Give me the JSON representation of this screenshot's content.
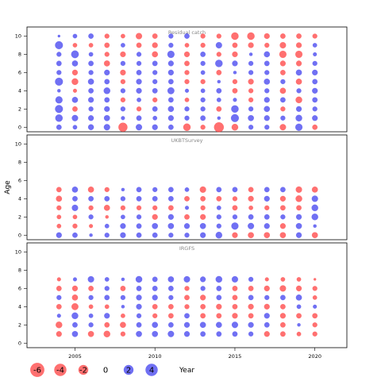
{
  "chart_data": {
    "type": "scatter",
    "subtype": "bubble-residuals",
    "xlabel": "Year",
    "ylabel": "Age",
    "xlim": [
      2002,
      2022
    ],
    "ylim": [
      -0.5,
      11
    ],
    "x_ticks": [
      2005,
      2010,
      2015,
      2020
    ],
    "y_ticks": [
      0,
      2,
      4,
      6,
      8,
      10
    ],
    "positive_color": "#3333ee",
    "negative_color": "#ff3333",
    "legend": {
      "values": [
        -6,
        -4,
        -2,
        0,
        2,
        4
      ],
      "labels": [
        "-6",
        "-4",
        "-2",
        "0",
        "2",
        "4"
      ]
    },
    "panels": [
      {
        "title": "Residual catch",
        "years": [
          2004,
          2005,
          2006,
          2007,
          2008,
          2009,
          2010,
          2011,
          2012,
          2013,
          2014,
          2015,
          2016,
          2017,
          2018,
          2019,
          2020
        ],
        "ages": [
          0,
          1,
          2,
          3,
          4,
          5,
          6,
          7,
          8,
          9,
          10
        ],
        "residuals": [
          [
            1.2,
            0.8,
            1.5,
            1.8,
            -4.0,
            1.8,
            1.4,
            1.2,
            -2.6,
            -1.0,
            -4.8,
            -2.0,
            1.0,
            1.0,
            -1.8,
            2.4,
            -1.2
          ],
          [
            2.6,
            1.8,
            1.4,
            1.6,
            0.6,
            1.2,
            0.8,
            1.4,
            1.0,
            1.2,
            0.4,
            3.0,
            1.6,
            1.4,
            1.0,
            2.0,
            1.4
          ],
          [
            3.0,
            -1.2,
            1.0,
            1.4,
            1.0,
            -1.0,
            1.2,
            1.6,
            1.0,
            1.0,
            -1.2,
            2.6,
            1.0,
            1.6,
            -1.0,
            1.4,
            1.0
          ],
          [
            2.4,
            1.6,
            1.4,
            1.2,
            -1.0,
            0.8,
            -1.0,
            1.2,
            -0.8,
            1.0,
            0.8,
            0.6,
            -1.0,
            1.4,
            1.2,
            -2.0,
            1.2
          ],
          [
            0.4,
            -0.6,
            1.2,
            2.0,
            1.0,
            1.4,
            1.2,
            2.2,
            0.6,
            0.8,
            1.2,
            -1.2,
            -1.0,
            1.0,
            -1.6,
            1.0,
            1.4
          ],
          [
            3.0,
            -2.0,
            1.6,
            1.2,
            -1.0,
            1.4,
            1.0,
            1.2,
            -1.0,
            -1.0,
            0.4,
            -1.0,
            -1.4,
            1.6,
            1.0,
            -1.6,
            1.2
          ],
          [
            1.0,
            -1.4,
            1.0,
            1.4,
            -1.4,
            1.2,
            1.0,
            1.4,
            -1.0,
            0.8,
            -1.2,
            0.4,
            1.0,
            1.0,
            -1.2,
            1.6,
            1.4
          ],
          [
            1.2,
            1.6,
            1.2,
            -1.6,
            1.0,
            1.0,
            1.2,
            1.4,
            -1.2,
            1.0,
            2.6,
            1.4,
            1.0,
            1.2,
            -1.4,
            -1.4,
            1.0
          ],
          [
            1.0,
            2.8,
            0.8,
            -1.0,
            -1.4,
            1.0,
            -1.6,
            2.4,
            -1.4,
            1.2,
            -1.0,
            -1.4,
            0.4,
            1.6,
            -2.4,
            -2.4,
            0.6
          ],
          [
            3.0,
            -0.8,
            -0.8,
            -1.2,
            0.8,
            -1.2,
            -1.4,
            1.0,
            -0.8,
            -1.0,
            1.8,
            -1.2,
            -1.4,
            -1.0,
            -1.8,
            -1.4,
            0.8
          ],
          [
            0.2,
            0.8,
            1.2,
            -1.0,
            -0.8,
            -1.8,
            -1.2,
            1.0,
            1.2,
            -1.0,
            -1.0,
            -2.6,
            -2.6,
            -1.4,
            -1.2,
            -1.2,
            -1.0
          ]
        ]
      },
      {
        "title": "UKBTSurvey",
        "years": [
          2004,
          2005,
          2006,
          2007,
          2008,
          2009,
          2010,
          2011,
          2012,
          2013,
          2014,
          2015,
          2016,
          2017,
          2018,
          2019,
          2020
        ],
        "ages": [
          0,
          1,
          2,
          3,
          4,
          5
        ],
        "residuals": [
          [
            1.4,
            1.2,
            0.4,
            1.0,
            1.4,
            1.2,
            1.2,
            1.0,
            1.0,
            1.4,
            2.0,
            -1.4,
            -1.6,
            -1.6,
            -1.6,
            1.4,
            -1.6
          ],
          [
            -0.8,
            -1.0,
            -0.6,
            0.8,
            1.4,
            1.2,
            1.6,
            1.6,
            1.4,
            1.6,
            1.0,
            2.4,
            1.8,
            1.4,
            -1.4,
            1.6,
            0.4
          ],
          [
            -0.8,
            -0.8,
            1.0,
            -0.4,
            0.8,
            1.0,
            -1.4,
            1.4,
            -1.2,
            -1.4,
            1.0,
            1.0,
            1.2,
            1.2,
            1.0,
            1.4,
            2.0
          ],
          [
            -1.0,
            1.8,
            -1.0,
            -1.6,
            -1.0,
            -1.0,
            -1.0,
            -1.2,
            0.6,
            -1.0,
            0.8,
            -1.2,
            -0.8,
            -1.0,
            -1.2,
            -1.2,
            2.0
          ],
          [
            -1.6,
            1.2,
            1.2,
            1.2,
            1.0,
            1.2,
            1.2,
            1.2,
            -1.2,
            -1.2,
            -1.2,
            -1.0,
            -1.4,
            1.4,
            -1.4,
            -2.0,
            1.8
          ],
          [
            -1.2,
            1.6,
            -1.6,
            -1.0,
            0.4,
            1.2,
            1.0,
            1.2,
            0.8,
            -1.8,
            1.2,
            1.2,
            -1.2,
            1.2,
            1.2,
            -1.8,
            -1.6
          ]
        ]
      },
      {
        "title": "IRGFS",
        "years": [
          2004,
          2005,
          2006,
          2007,
          2008,
          2009,
          2010,
          2011,
          2012,
          2013,
          2014,
          2015,
          2016,
          2017,
          2018,
          2019,
          2020
        ],
        "ages": [
          1,
          2,
          3,
          4,
          5,
          6,
          7
        ],
        "residuals": [
          [
            -1.4,
            1.6,
            -1.6,
            -2.0,
            -1.0,
            1.6,
            1.6,
            1.8,
            1.4,
            1.2,
            1.2,
            1.2,
            1.0,
            -1.4,
            -1.2,
            -0.8,
            -1.0
          ],
          [
            -2.0,
            1.2,
            1.0,
            -1.2,
            -1.6,
            1.2,
            1.6,
            1.2,
            1.4,
            1.6,
            1.6,
            1.8,
            1.4,
            1.2,
            -1.2,
            0.4,
            -1.0
          ],
          [
            0.6,
            2.0,
            0.8,
            1.4,
            -0.8,
            1.0,
            -1.0,
            -1.2,
            1.2,
            -1.2,
            -1.2,
            -1.4,
            -1.2,
            1.4,
            -1.4,
            -1.2,
            -1.2
          ],
          [
            -1.2,
            -2.2,
            -0.8,
            -0.8,
            0.4,
            1.4,
            -1.2,
            -1.2,
            -1.0,
            -1.2,
            -1.4,
            -1.2,
            -1.4,
            -1.4,
            -1.2,
            0.8,
            0.6
          ],
          [
            1.0,
            -1.6,
            1.0,
            1.2,
            1.0,
            1.4,
            1.4,
            1.0,
            -1.2,
            -1.4,
            1.2,
            -1.2,
            1.2,
            1.0,
            1.2,
            1.6,
            -0.8
          ],
          [
            -1.2,
            -1.4,
            -1.2,
            1.0,
            -1.2,
            1.2,
            1.2,
            1.2,
            -1.0,
            1.0,
            1.2,
            -1.2,
            -1.2,
            -1.4,
            -1.8,
            -1.4,
            -1.0
          ],
          [
            -0.6,
            0.6,
            1.8,
            0.8,
            0.4,
            2.0,
            1.2,
            1.6,
            1.8,
            1.4,
            2.0,
            1.8,
            1.0,
            -0.6,
            -0.8,
            -0.8,
            -0.2
          ]
        ]
      }
    ]
  }
}
